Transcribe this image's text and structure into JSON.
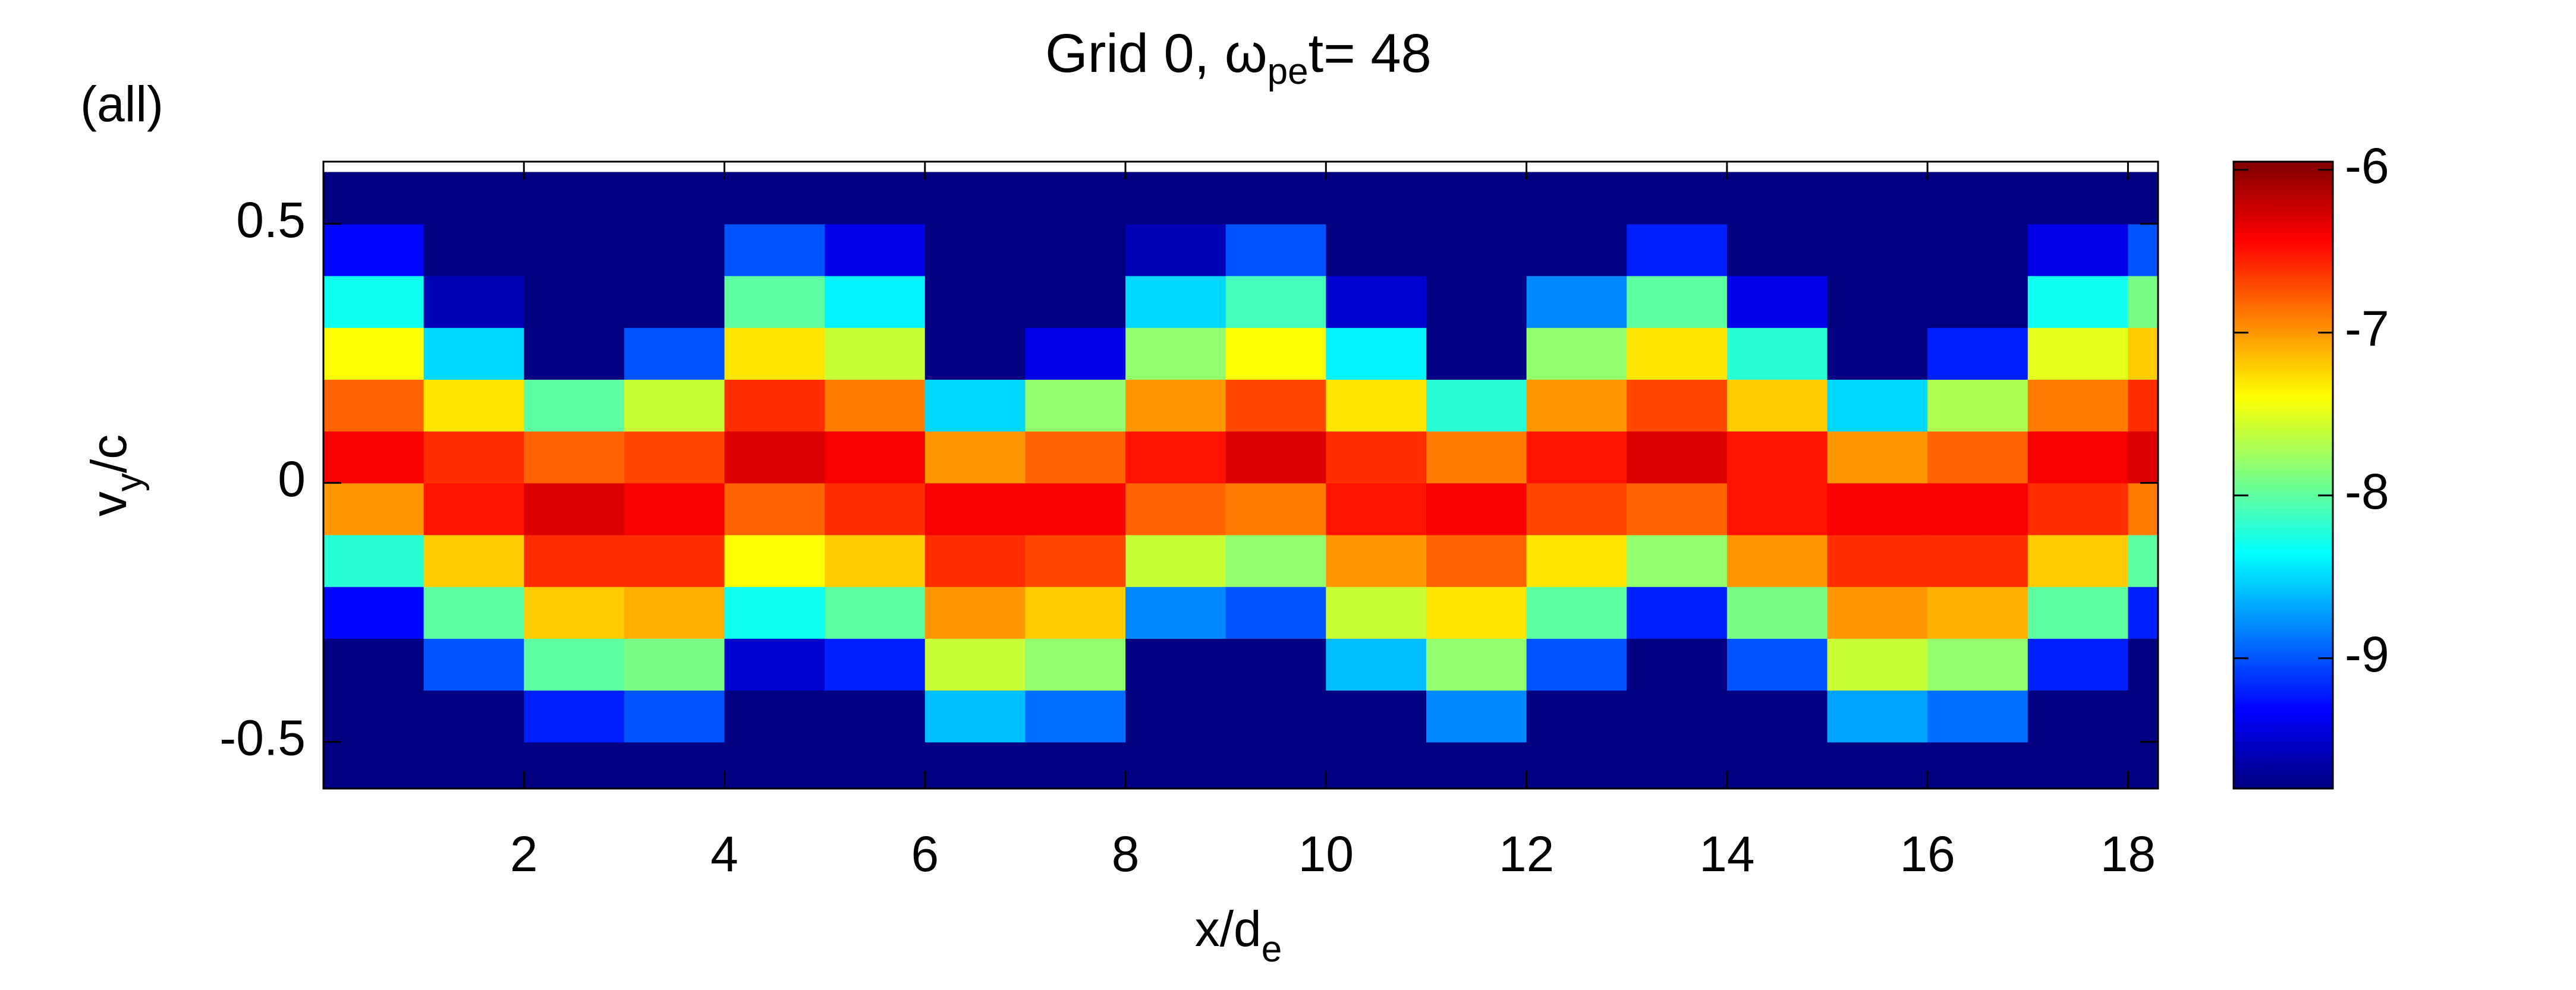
{
  "chart_data": {
    "type": "heatmap",
    "title_parts": [
      "Grid 0,  ω",
      "pe",
      "t= 48"
    ],
    "panel_label": "(all)",
    "xlabel_parts": [
      "x/d",
      "e"
    ],
    "ylabel_parts": [
      "v",
      "y",
      "/c"
    ],
    "colormap": "jet",
    "xlim": [
      0,
      18.3
    ],
    "ylim": [
      -0.59,
      0.62
    ],
    "xticks": [
      2,
      4,
      6,
      8,
      10,
      12,
      14,
      16,
      18
    ],
    "yticks": [
      -0.5,
      0,
      0.5
    ],
    "clim": [
      -9.8,
      -5.95
    ],
    "cticks": [
      -9,
      -8,
      -7,
      -6
    ],
    "x": [
      0.5,
      1.5,
      2.5,
      3.5,
      4.5,
      5.5,
      6.5,
      7.5,
      8.5,
      9.5,
      10.5,
      11.5,
      12.5,
      13.5,
      14.5,
      15.5,
      16.5,
      17.5,
      18.5
    ],
    "y": [
      -0.55,
      -0.45,
      -0.35,
      -0.25,
      -0.15,
      -0.05,
      0.05,
      0.15,
      0.25,
      0.35,
      0.45,
      0.55
    ],
    "values": [
      [
        -9.8,
        -9.8,
        -9.8,
        -9.3,
        -8.2,
        -7.0,
        -6.4,
        -6.8,
        -7.4,
        -8.3,
        -9.3,
        -9.8
      ],
      [
        -9.8,
        -9.8,
        -9.0,
        -8.0,
        -7.2,
        -6.5,
        -6.6,
        -7.3,
        -8.5,
        -9.6,
        -9.8,
        -9.8
      ],
      [
        -9.8,
        -9.2,
        -8.0,
        -7.2,
        -6.6,
        -6.3,
        -6.8,
        -8.0,
        -9.8,
        -9.8,
        -9.8,
        -9.8
      ],
      [
        -9.8,
        -9.0,
        -7.9,
        -7.1,
        -6.6,
        -6.4,
        -6.7,
        -7.6,
        -9.0,
        -9.8,
        -9.8,
        -9.8
      ],
      [
        -9.8,
        -9.8,
        -9.5,
        -8.3,
        -7.4,
        -6.8,
        -6.3,
        -6.6,
        -7.3,
        -8.0,
        -9.0,
        -9.8
      ],
      [
        -9.8,
        -9.8,
        -9.2,
        -8.0,
        -7.2,
        -6.6,
        -6.4,
        -6.9,
        -7.6,
        -8.4,
        -9.4,
        -9.8
      ],
      [
        -9.8,
        -8.6,
        -7.6,
        -7.0,
        -6.6,
        -6.4,
        -7.0,
        -8.5,
        -9.8,
        -9.8,
        -9.8,
        -9.8
      ],
      [
        -9.8,
        -8.9,
        -7.8,
        -7.2,
        -6.7,
        -6.4,
        -6.8,
        -7.8,
        -9.4,
        -9.8,
        -9.8,
        -9.8
      ],
      [
        -9.8,
        -9.8,
        -9.8,
        -8.8,
        -7.6,
        -6.8,
        -6.5,
        -7.0,
        -7.8,
        -8.5,
        -9.6,
        -9.8
      ],
      [
        -9.8,
        -9.8,
        -9.8,
        -9.0,
        -7.8,
        -6.9,
        -6.3,
        -6.7,
        -7.4,
        -8.1,
        -9.0,
        -9.8
      ],
      [
        -9.8,
        -9.8,
        -8.6,
        -7.6,
        -7.0,
        -6.5,
        -6.6,
        -7.3,
        -8.4,
        -9.5,
        -9.8,
        -9.8
      ],
      [
        -9.8,
        -8.8,
        -7.8,
        -7.3,
        -6.8,
        -6.4,
        -6.9,
        -8.2,
        -9.8,
        -9.8,
        -9.8,
        -9.8
      ],
      [
        -9.8,
        -9.8,
        -9.0,
        -8.0,
        -7.3,
        -6.7,
        -6.5,
        -7.0,
        -7.8,
        -8.8,
        -9.8,
        -9.8
      ],
      [
        -9.8,
        -9.8,
        -9.8,
        -9.2,
        -7.8,
        -6.8,
        -6.3,
        -6.7,
        -7.3,
        -8.0,
        -9.2,
        -9.8
      ],
      [
        -9.8,
        -9.8,
        -9.0,
        -7.9,
        -7.0,
        -6.5,
        -6.5,
        -7.2,
        -8.2,
        -9.4,
        -9.8,
        -9.8
      ],
      [
        -9.8,
        -8.7,
        -7.6,
        -7.0,
        -6.6,
        -6.4,
        -7.0,
        -8.5,
        -9.8,
        -9.8,
        -9.8,
        -9.8
      ],
      [
        -9.8,
        -8.9,
        -7.8,
        -7.1,
        -6.6,
        -6.4,
        -6.8,
        -7.7,
        -9.2,
        -9.8,
        -9.8,
        -9.8
      ],
      [
        -9.8,
        -9.8,
        -9.2,
        -8.0,
        -7.2,
        -6.6,
        -6.4,
        -6.9,
        -7.5,
        -8.3,
        -9.4,
        -9.8
      ],
      [
        -9.8,
        -9.8,
        -9.8,
        -9.2,
        -8.0,
        -6.9,
        -6.3,
        -6.6,
        -7.2,
        -7.9,
        -9.0,
        -9.8
      ]
    ]
  }
}
